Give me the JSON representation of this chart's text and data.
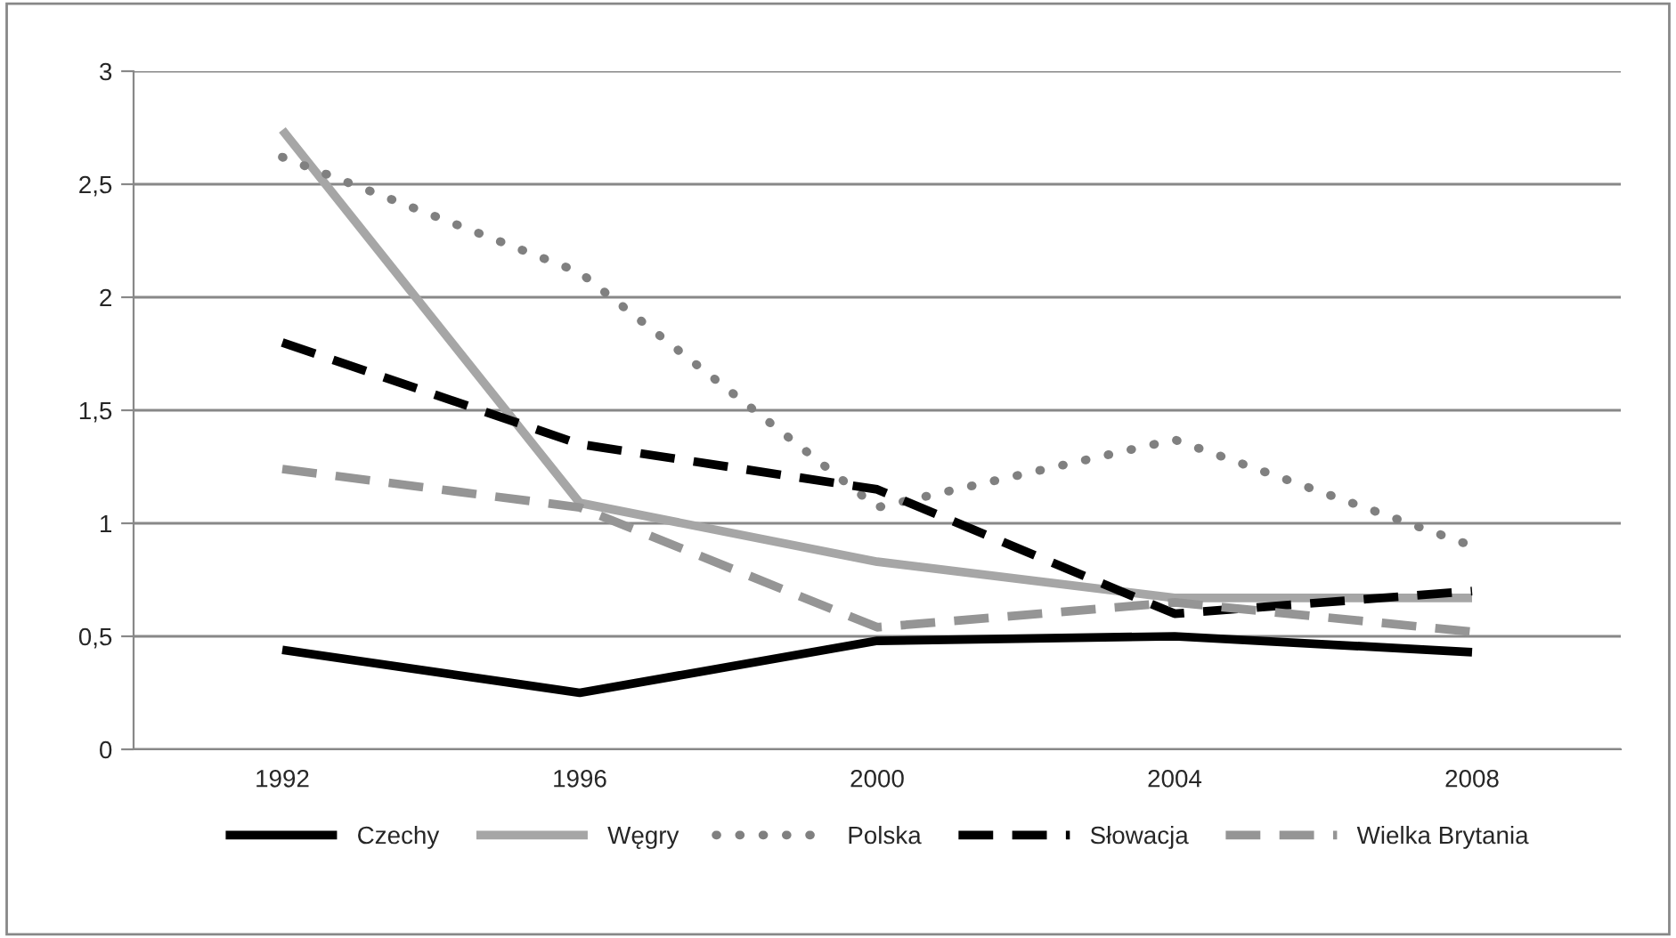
{
  "chart_data": {
    "type": "line",
    "categories": [
      "1992",
      "1996",
      "2000",
      "2004",
      "2008"
    ],
    "series": [
      {
        "name": "Czechy",
        "color": "#000000",
        "line_style": "solid",
        "values": [
          0.44,
          0.25,
          0.48,
          0.5,
          0.43
        ]
      },
      {
        "name": "Węgry",
        "color": "#a6a6a6",
        "line_style": "solid",
        "values": [
          2.74,
          1.09,
          0.83,
          0.67,
          0.67
        ]
      },
      {
        "name": "Polska",
        "color": "#808080",
        "line_style": "dotted",
        "values": [
          2.62,
          2.11,
          1.07,
          1.37,
          0.9
        ]
      },
      {
        "name": "Słowacja",
        "color": "#000000",
        "line_style": "dashed",
        "values": [
          1.8,
          1.35,
          1.15,
          0.6,
          0.7
        ]
      },
      {
        "name": "Wielka Brytania",
        "color": "#959595",
        "line_style": "dashed",
        "values": [
          1.24,
          1.07,
          0.54,
          0.65,
          0.52
        ]
      }
    ],
    "ylim": [
      0,
      3
    ],
    "yticks": [
      0,
      {
        "value": 0.5,
        "label": "0,5"
      },
      1,
      {
        "value": 1.5,
        "label": "1,5"
      },
      2,
      {
        "value": 2.5,
        "label": "2,5"
      },
      3
    ],
    "grid": "y",
    "legend": "bottom",
    "marker": "none"
  }
}
